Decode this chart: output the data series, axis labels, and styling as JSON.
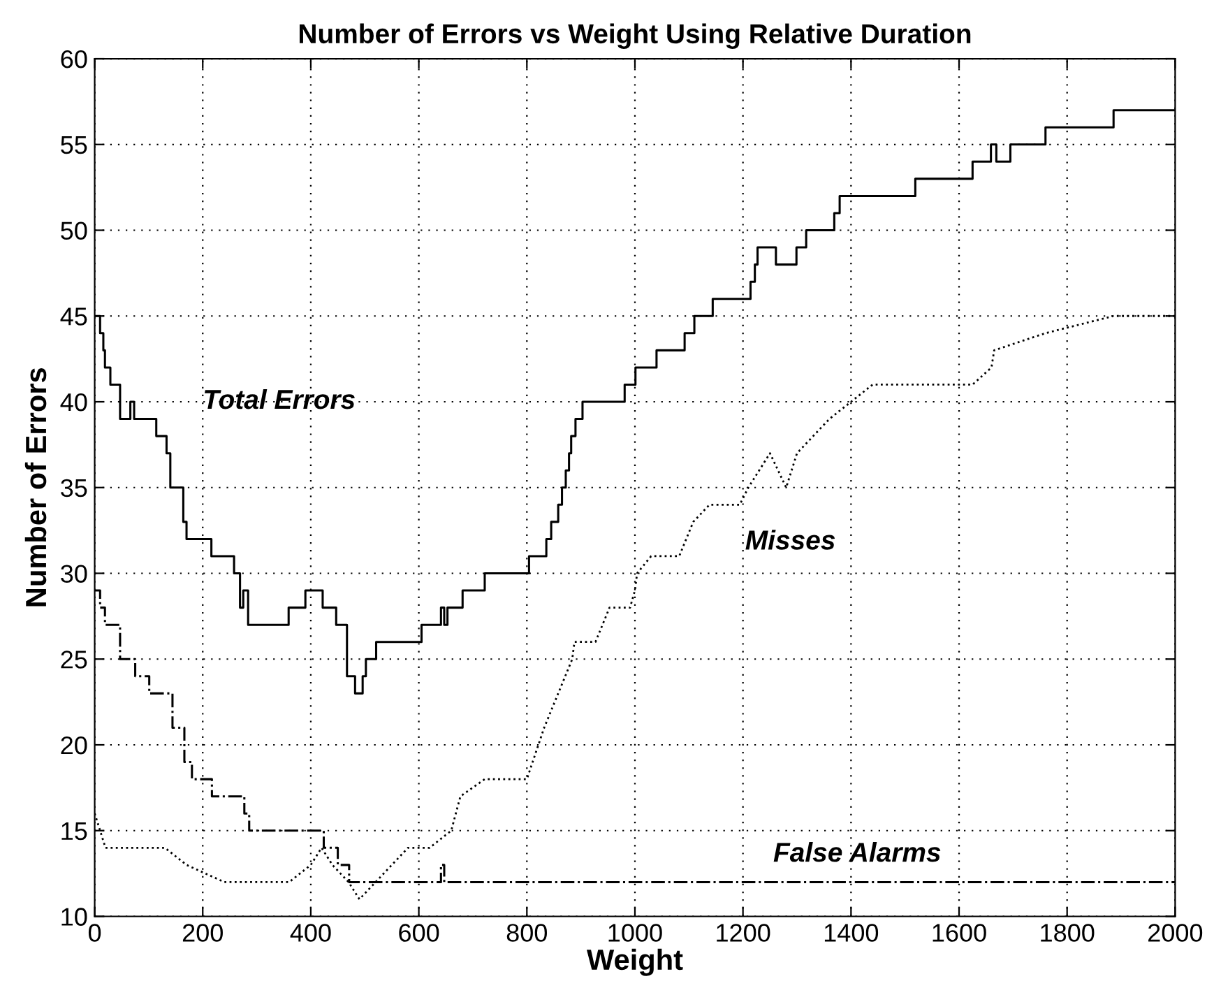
{
  "chart_data": {
    "type": "step",
    "title": "Number of Errors vs Weight Using Relative Duration",
    "xlabel": "Weight",
    "ylabel": "Number of Errors",
    "xlim": [
      0,
      2000
    ],
    "xticks": [
      0,
      200,
      400,
      600,
      800,
      1000,
      1200,
      1400,
      1600,
      1800,
      2000
    ],
    "ylim": [
      10,
      60
    ],
    "yticks": [
      10,
      15,
      20,
      25,
      30,
      35,
      40,
      45,
      50,
      55,
      60
    ],
    "grid": true,
    "legend": false,
    "series": [
      {
        "name": "Total Errors",
        "color": "#000000",
        "line_style": "solid",
        "x": [
          0,
          10,
          16,
          19,
          29,
          47,
          66,
          73,
          114,
          133,
          140,
          164,
          170,
          216,
          258,
          269,
          275,
          284,
          359,
          390,
          422,
          447,
          467,
          482,
          496,
          502,
          521,
          605,
          641,
          647,
          653,
          681,
          722,
          804,
          836,
          845,
          858,
          865,
          872,
          878,
          882,
          890,
          903,
          981,
          1001,
          1040,
          1092,
          1110,
          1144,
          1214,
          1222,
          1227,
          1261,
          1299,
          1317,
          1369,
          1379,
          1519,
          1625,
          1659,
          1669,
          1695,
          1760,
          1886,
          2000
        ],
        "values": [
          45,
          44,
          43,
          42,
          41,
          39,
          40,
          39,
          38,
          37,
          35,
          33,
          32,
          31,
          30,
          28,
          29,
          27,
          28,
          29,
          28,
          27,
          24,
          23,
          24,
          25,
          26,
          27,
          28,
          27,
          28,
          29,
          30,
          31,
          32,
          33,
          34,
          35,
          36,
          37,
          38,
          39,
          40,
          41,
          42,
          43,
          44,
          45,
          46,
          47,
          48,
          49,
          48,
          49,
          50,
          51,
          52,
          53,
          54,
          55,
          54,
          55,
          56,
          57,
          57
        ]
      },
      {
        "name": "Misses",
        "type": "line",
        "color": "#000000",
        "line_style": "dotted",
        "x": [
          0,
          10,
          20,
          130,
          170,
          240,
          360,
          400,
          420,
          440,
          470,
          490,
          520,
          550,
          580,
          620,
          660,
          677,
          722,
          800,
          832,
          845,
          884,
          888,
          927,
          940,
          953,
          991,
          1000,
          1004,
          1030,
          1082,
          1108,
          1138,
          1194,
          1210,
          1250,
          1280,
          1300,
          1330,
          1360,
          1400,
          1440,
          1625,
          1660,
          1665,
          1760,
          1886,
          2000
        ],
        "values": [
          16,
          15,
          14,
          14,
          13,
          12,
          12,
          13,
          14,
          13,
          12,
          11,
          12,
          13,
          14,
          14,
          15,
          17,
          18,
          18,
          21,
          22,
          25,
          26,
          26,
          27,
          28,
          28,
          29,
          30,
          31,
          31,
          33,
          34,
          34,
          35,
          37,
          35,
          37,
          38,
          39,
          40,
          41,
          41,
          42,
          43,
          44,
          45,
          45
        ]
      },
      {
        "name": "False Alarms",
        "color": "#000000",
        "line_style": "dashdot",
        "x": [
          0,
          10,
          19,
          47,
          75,
          101,
          114,
          144,
          166,
          180,
          217,
          277,
          286,
          424,
          450,
          471,
          641,
          647,
          2000
        ],
        "values": [
          29,
          28,
          27,
          25,
          24,
          23,
          23,
          21,
          19,
          18,
          17,
          16,
          15,
          14,
          13,
          12,
          13,
          12,
          12
        ]
      }
    ]
  }
}
